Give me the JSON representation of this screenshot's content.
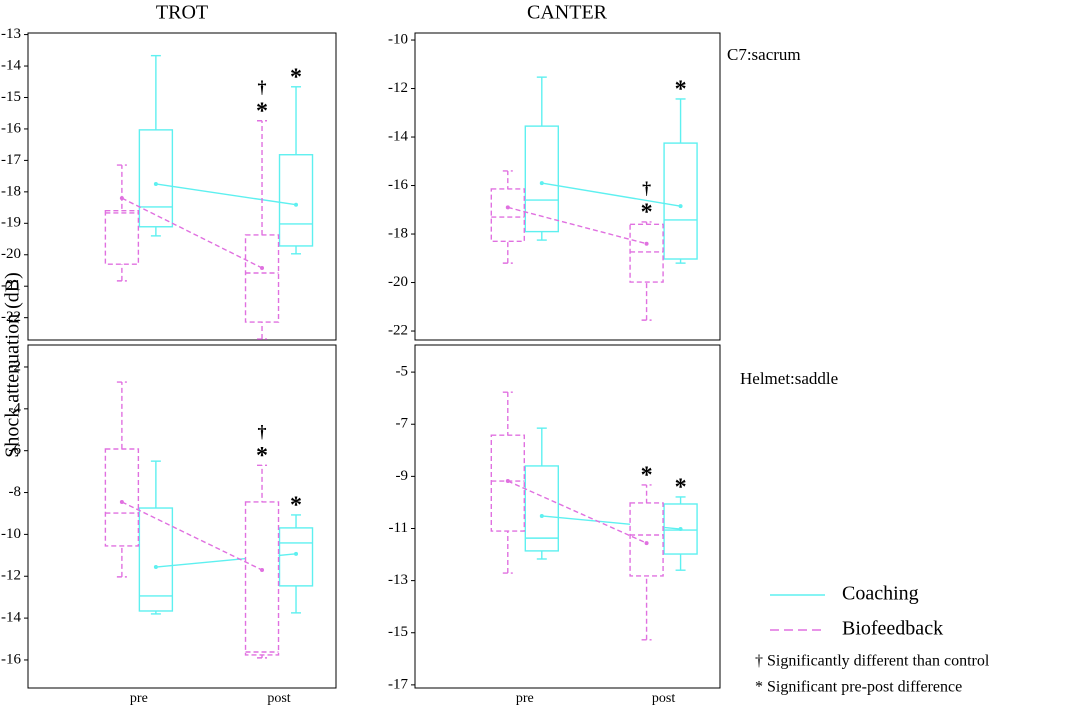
{
  "ylabel": "Shock attenuation (dB)",
  "legend": [
    {
      "name": "Coaching",
      "color": "#5ef0f0",
      "dashed": false
    },
    {
      "name": "Biofeedback",
      "color": "#e070e0",
      "dashed": true
    }
  ],
  "notes": [
    "† Significantly different than control",
    "* Significant pre-post difference"
  ],
  "chart_data": [
    {
      "type": "box",
      "title": "TROT",
      "categories": [
        null,
        null
      ],
      "ylim": [
        -22.71,
        -12.95
      ],
      "yticks": [
        -13,
        -14,
        -15,
        -16,
        -17,
        -18,
        -19,
        -20,
        -21,
        -22
      ],
      "series": [
        {
          "low": [
            -19.4,
            -19.97
          ],
          "q1": [
            -19.11,
            -19.72
          ],
          "median": [
            -18.48,
            -19.02
          ],
          "q3": [
            -16.03,
            -16.82
          ],
          "high": [
            -13.67,
            -14.66
          ],
          "mean": [
            -17.75,
            -18.41
          ],
          "marks": [
            null,
            [
              "*"
            ]
          ]
        },
        {
          "low": [
            -20.83,
            -22.68
          ],
          "q1": [
            -20.3,
            -22.14
          ],
          "median": [
            -18.67,
            -20.58
          ],
          "q3": [
            -18.6,
            -19.37
          ],
          "high": [
            -17.15,
            -15.74
          ],
          "mean": [
            -18.2,
            -20.42
          ],
          "marks": [
            null,
            [
              "†",
              "*"
            ]
          ]
        }
      ]
    },
    {
      "type": "box",
      "title": "CANTER",
      "annotation": "C7:sacrum",
      "categories": [
        null,
        null
      ],
      "ylim": [
        -22.37,
        -9.71
      ],
      "yticks": [
        -10,
        -12,
        -14,
        -16,
        -18,
        -20,
        -22
      ],
      "series": [
        {
          "low": [
            -18.25,
            -19.2
          ],
          "q1": [
            -17.9,
            -19.03
          ],
          "median": [
            -16.6,
            -17.42
          ],
          "q3": [
            -13.55,
            -14.25
          ],
          "high": [
            -11.53,
            -12.43
          ],
          "mean": [
            -15.9,
            -16.85
          ],
          "marks": [
            null,
            [
              "*"
            ]
          ]
        },
        {
          "low": [
            -19.2,
            -21.55
          ],
          "q1": [
            -18.3,
            -19.98
          ],
          "median": [
            -17.3,
            -18.74
          ],
          "q3": [
            -16.14,
            -17.6
          ],
          "high": [
            -15.4,
            -17.5
          ],
          "mean": [
            -16.9,
            -18.4
          ],
          "marks": [
            null,
            [
              "†",
              "*"
            ]
          ]
        }
      ]
    },
    {
      "type": "box",
      "categories": [
        "pre",
        "post"
      ],
      "ylim": [
        -17.34,
        -0.95
      ],
      "yticks": [
        -2,
        -4,
        -6,
        -8,
        -10,
        -12,
        -14,
        -16
      ],
      "series": [
        {
          "low": [
            -13.8,
            -13.75
          ],
          "q1": [
            -13.66,
            -12.46
          ],
          "median": [
            -12.94,
            -10.41
          ],
          "q3": [
            -8.74,
            -9.69
          ],
          "high": [
            -6.5,
            -9.07
          ],
          "mean": [
            -11.56,
            -10.93
          ],
          "marks": [
            null,
            [
              "*"
            ]
          ]
        },
        {
          "low": [
            -12.03,
            -15.9
          ],
          "q1": [
            -10.55,
            -15.76
          ],
          "median": [
            -8.98,
            -15.62
          ],
          "q3": [
            -5.92,
            -8.45
          ],
          "high": [
            -2.72,
            -6.7
          ],
          "mean": [
            -8.45,
            -11.7
          ],
          "marks": [
            null,
            [
              "†",
              "*"
            ]
          ]
        }
      ]
    },
    {
      "type": "box",
      "annotation": "Helmet:saddle",
      "categories": [
        "pre",
        "post"
      ],
      "ylim": [
        -17.12,
        -3.96
      ],
      "yticks": [
        -5,
        -7,
        -9,
        -11,
        -13,
        -15,
        -17
      ],
      "series": [
        {
          "low": [
            -12.17,
            -12.6
          ],
          "q1": [
            -11.86,
            -11.98
          ],
          "median": [
            -11.37,
            -11.06
          ],
          "q3": [
            -8.6,
            -10.06
          ],
          "high": [
            -7.15,
            -9.79
          ],
          "mean": [
            -10.52,
            -11.02
          ],
          "marks": [
            null,
            [
              "*"
            ]
          ]
        },
        {
          "low": [
            -12.71,
            -15.27
          ],
          "q1": [
            -11.1,
            -12.82
          ],
          "median": [
            -9.18,
            -11.25
          ],
          "q3": [
            -7.42,
            -10.02
          ],
          "high": [
            -5.77,
            -9.33
          ],
          "mean": [
            -9.18,
            -11.56
          ],
          "marks": [
            null,
            [
              "*"
            ]
          ]
        }
      ]
    }
  ]
}
